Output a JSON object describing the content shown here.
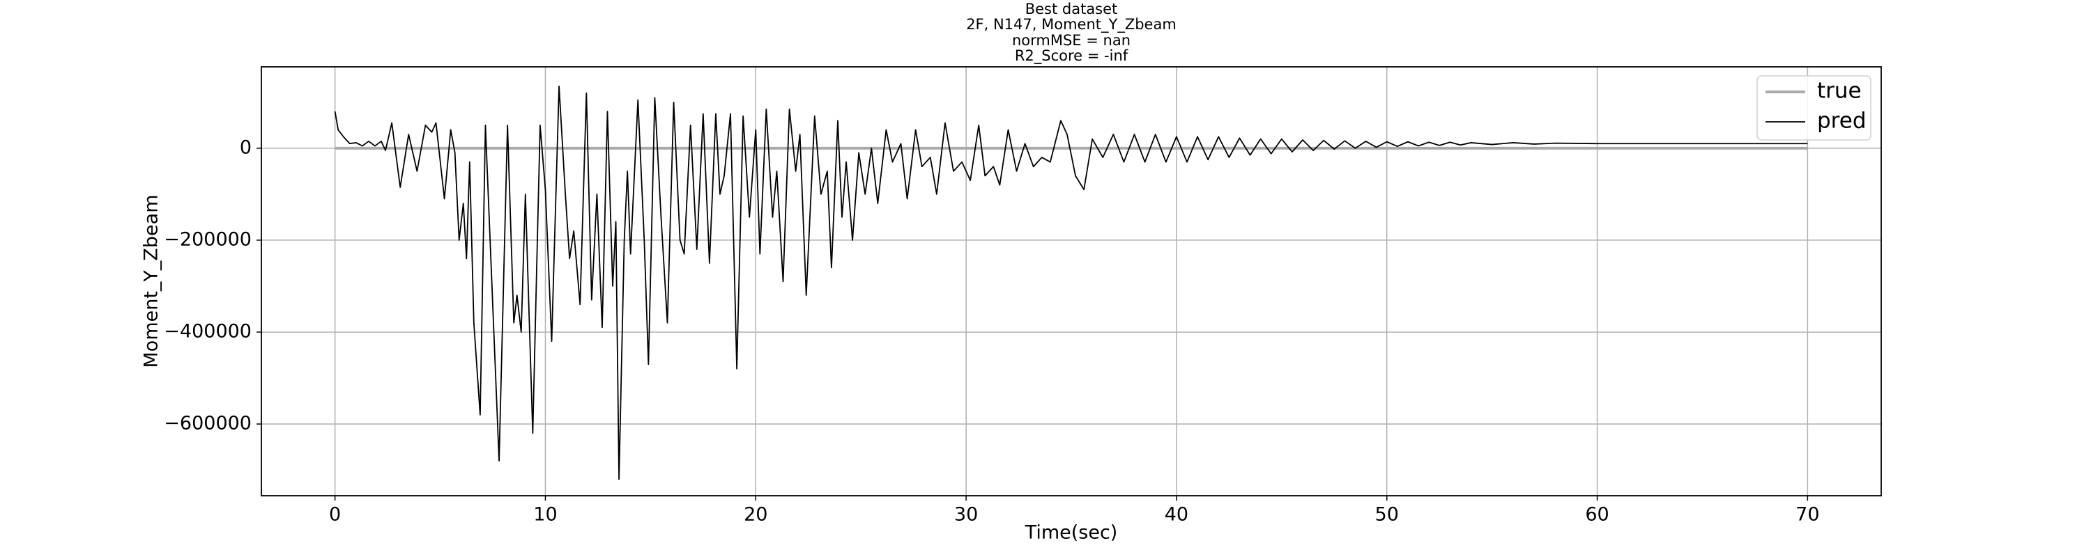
{
  "chart_data": {
    "type": "line",
    "title": [
      "Best dataset",
      "2F, N147, Moment_Y_Zbeam",
      "normMSE = nan",
      "R2_Score = -inf"
    ],
    "xlabel": "Time(sec)",
    "ylabel": "Moment_Y_Zbeam",
    "xlim": [
      -3.5,
      73.5
    ],
    "ylim": [
      -756000,
      177000
    ],
    "xticks": [
      0,
      10,
      20,
      30,
      40,
      50,
      60,
      70
    ],
    "yticks": [
      {
        "value": -600000,
        "label": "−600000"
      },
      {
        "value": -400000,
        "label": "−400000"
      },
      {
        "value": -200000,
        "label": "−200000"
      },
      0
    ],
    "grid": true,
    "legend": "upper right",
    "series": [
      {
        "name": "true",
        "color": "#aaaaaa",
        "x": [
          0,
          70
        ],
        "values": [
          0,
          0
        ]
      },
      {
        "name": "pred",
        "color": "#000000",
        "x": [
          0,
          0.15,
          0.4,
          0.7,
          1.0,
          1.3,
          1.6,
          1.9,
          2.2,
          2.4,
          2.7,
          3.1,
          3.5,
          3.9,
          4.3,
          4.6,
          4.8,
          5.2,
          5.5,
          5.7,
          5.9,
          6.1,
          6.25,
          6.4,
          6.6,
          6.9,
          7.15,
          7.8,
          8.2,
          8.5,
          8.65,
          8.85,
          9.05,
          9.4,
          9.75,
          10.0,
          10.3,
          10.65,
          10.95,
          11.15,
          11.35,
          11.65,
          11.95,
          12.2,
          12.45,
          12.7,
          12.95,
          13.2,
          13.35,
          13.5,
          13.75,
          13.9,
          14.05,
          14.4,
          14.7,
          14.9,
          15.2,
          15.5,
          15.8,
          16.1,
          16.4,
          16.6,
          16.9,
          17.2,
          17.5,
          17.8,
          18.1,
          18.3,
          18.5,
          18.8,
          19.1,
          19.4,
          19.7,
          20.0,
          20.2,
          20.5,
          20.8,
          21.0,
          21.3,
          21.6,
          21.9,
          22.1,
          22.4,
          22.8,
          23.1,
          23.4,
          23.6,
          23.9,
          24.1,
          24.3,
          24.6,
          24.9,
          25.2,
          25.5,
          25.8,
          26.2,
          26.5,
          26.9,
          27.2,
          27.6,
          27.9,
          28.3,
          28.6,
          29.0,
          29.4,
          29.8,
          30.2,
          30.6,
          30.9,
          31.3,
          31.6,
          32.0,
          32.4,
          32.8,
          33.2,
          33.6,
          34.0,
          34.5,
          34.8,
          35.2,
          35.6,
          36.0,
          36.5,
          37.0,
          37.5,
          38.0,
          38.5,
          39.0,
          39.5,
          40.0,
          40.5,
          41.0,
          41.5,
          42.0,
          42.5,
          43.0,
          43.5,
          44.0,
          44.5,
          45.0,
          45.5,
          46.0,
          46.5,
          47.0,
          47.5,
          48.0,
          48.5,
          49.0,
          49.5,
          50.0,
          50.5,
          51.0,
          51.5,
          52.0,
          52.5,
          53.0,
          53.5,
          54.0,
          55,
          56,
          57,
          58,
          60,
          65,
          70
        ],
        "values": [
          80000,
          40000,
          25000,
          10000,
          12000,
          5000,
          15000,
          5000,
          15000,
          -5000,
          55000,
          -85000,
          30000,
          -50000,
          50000,
          35000,
          55000,
          -110000,
          40000,
          -10000,
          -200000,
          -120000,
          -240000,
          -30000,
          -380000,
          -580000,
          50000,
          -680000,
          50000,
          -380000,
          -320000,
          -400000,
          -100000,
          -620000,
          50000,
          -90000,
          -420000,
          135000,
          -100000,
          -240000,
          -180000,
          -340000,
          120000,
          -330000,
          -100000,
          -390000,
          80000,
          -300000,
          -160000,
          -720000,
          -200000,
          -50000,
          -230000,
          105000,
          -200000,
          -470000,
          110000,
          -150000,
          -380000,
          100000,
          -200000,
          -230000,
          50000,
          -220000,
          75000,
          -250000,
          75000,
          -100000,
          -60000,
          75000,
          -480000,
          70000,
          -150000,
          40000,
          -230000,
          85000,
          -150000,
          -50000,
          -290000,
          85000,
          -50000,
          30000,
          -320000,
          70000,
          -100000,
          -50000,
          -260000,
          60000,
          -150000,
          -30000,
          -200000,
          -10000,
          -100000,
          0,
          -120000,
          40000,
          -30000,
          10000,
          -110000,
          40000,
          -40000,
          -20000,
          -100000,
          55000,
          -50000,
          -30000,
          -70000,
          50000,
          -60000,
          -40000,
          -80000,
          40000,
          -50000,
          10000,
          -40000,
          -20000,
          -30000,
          60000,
          30000,
          -60000,
          -90000,
          20000,
          -20000,
          30000,
          -30000,
          30000,
          -30000,
          30000,
          -30000,
          25000,
          -30000,
          25000,
          -25000,
          25000,
          -20000,
          22000,
          -15000,
          20000,
          -12000,
          20000,
          -8000,
          18000,
          -5000,
          17000,
          -2000,
          16000,
          0,
          15000,
          2000,
          14000,
          4000,
          14000,
          5000,
          13000,
          6000,
          13000,
          7000,
          12000,
          8000,
          12000,
          9000,
          11000,
          10000,
          10000,
          10000
        ]
      }
    ]
  }
}
